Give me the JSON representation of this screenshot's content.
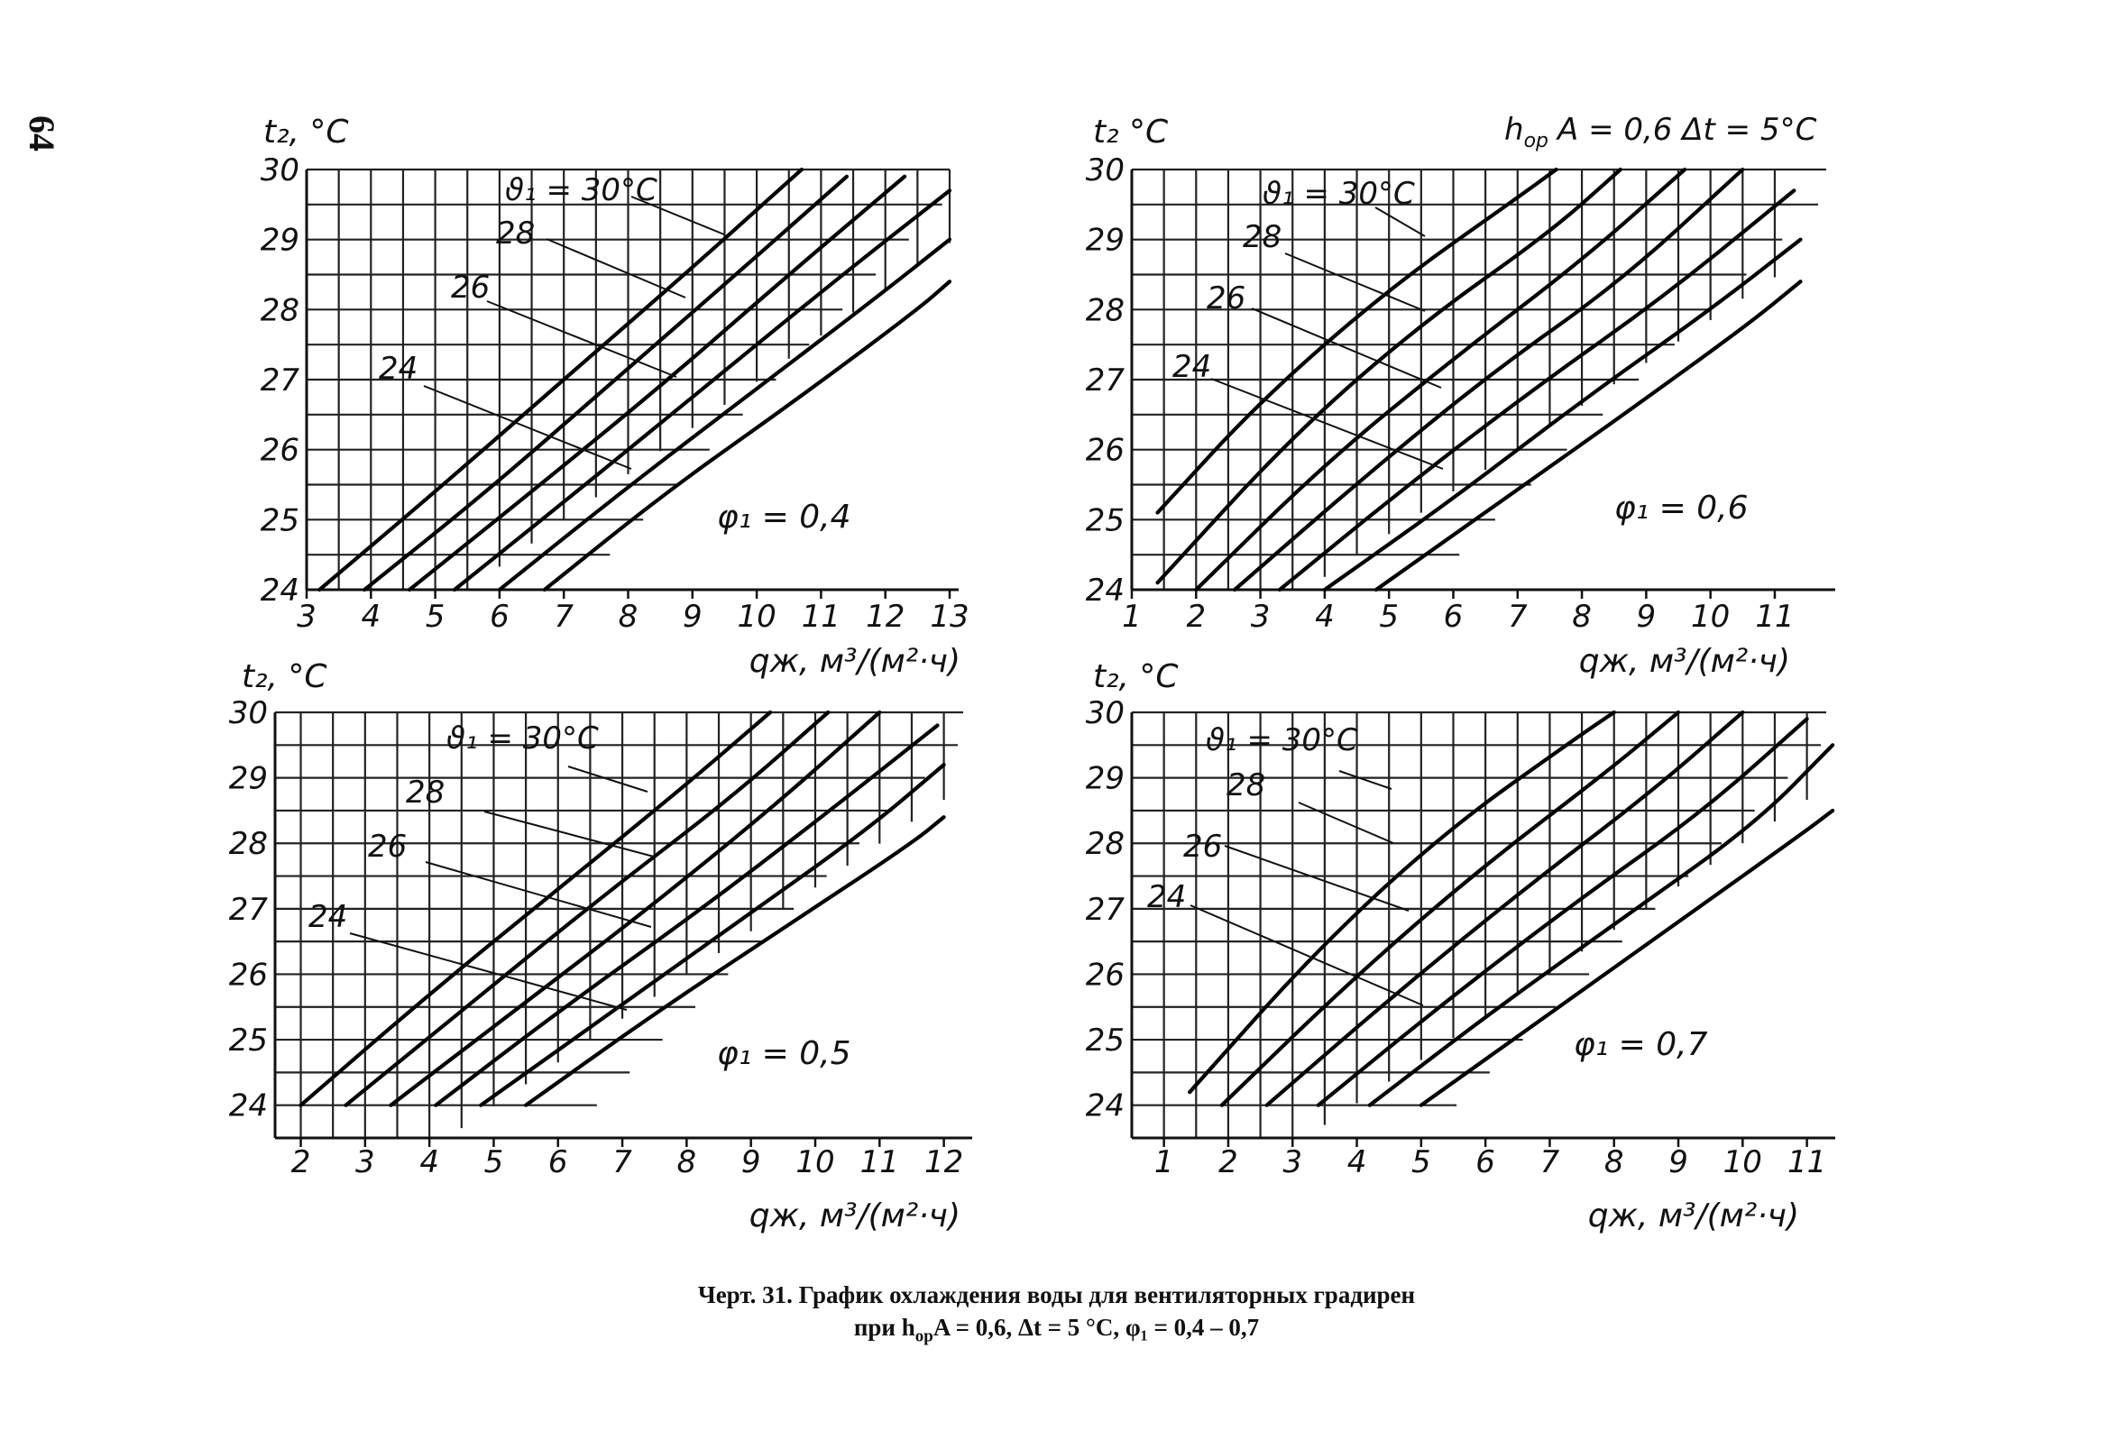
{
  "page_number": "64",
  "header": {
    "parameter_text": "h",
    "parameter_sub": "ор",
    "parameter_rest": "A = 0,6   Δt = 5°C"
  },
  "caption": {
    "line1": "Черт. 31. График охлаждения воды для вентиляторных градирен",
    "line2_prefix": "при h",
    "line2_sub": "ор",
    "line2_suffix": "A = 0,6, Δt = 5 °C, φ₁ = 0,4 – 0,7"
  },
  "chart_data": [
    {
      "type": "line",
      "ylabel": "t₂, °C",
      "xlabel": "qж, м³/(м²·ч)",
      "phi_label": "φ₁ = 0,4",
      "xlim": [
        3,
        13
      ],
      "ylim": [
        24,
        30
      ],
      "xticks": [
        "3",
        "4",
        "5",
        "6",
        "7",
        "8",
        "9",
        "10",
        "11",
        "12",
        "13"
      ],
      "yticks": [
        "24",
        "25",
        "26",
        "27",
        "28",
        "29",
        "30"
      ],
      "curve_labels": [
        "ϑ₁ = 30°C",
        "28",
        "26",
        "24"
      ],
      "series": [
        {
          "points": [
            [
              3.2,
              24.0
            ],
            [
              5.0,
              25.4
            ],
            [
              7.0,
              27.0
            ],
            [
              9.0,
              28.6
            ],
            [
              10.7,
              30.0
            ]
          ]
        },
        {
          "points": [
            [
              3.9,
              24.0
            ],
            [
              5.8,
              25.4
            ],
            [
              7.8,
              27.0
            ],
            [
              9.8,
              28.6
            ],
            [
              11.4,
              29.9
            ]
          ]
        },
        {
          "points": [
            [
              4.6,
              24.0
            ],
            [
              6.5,
              25.4
            ],
            [
              8.5,
              26.9
            ],
            [
              10.5,
              28.5
            ],
            [
              12.3,
              29.9
            ]
          ]
        },
        {
          "points": [
            [
              5.3,
              24.0
            ],
            [
              7.2,
              25.4
            ],
            [
              9.2,
              26.9
            ],
            [
              11.2,
              28.4
            ],
            [
              13.0,
              29.7
            ]
          ]
        },
        {
          "points": [
            [
              6.0,
              24.0
            ],
            [
              7.9,
              25.4
            ],
            [
              9.9,
              26.8
            ],
            [
              11.9,
              28.2
            ],
            [
              13.0,
              29.0
            ]
          ]
        },
        {
          "points": [
            [
              6.7,
              24.0
            ],
            [
              8.6,
              25.4
            ],
            [
              10.6,
              26.7
            ],
            [
              12.5,
              28.0
            ],
            [
              13.0,
              28.4
            ]
          ]
        }
      ]
    },
    {
      "type": "line",
      "ylabel": "t₂ °C",
      "xlabel": "qж, м³/(м²·ч)",
      "phi_label": "φ₁ = 0,6",
      "xlim": [
        1,
        11.8
      ],
      "ylim": [
        24,
        30
      ],
      "xticks": [
        "1",
        "2",
        "3",
        "4",
        "5",
        "6",
        "7",
        "8",
        "9",
        "10",
        "11"
      ],
      "yticks": [
        "24",
        "25",
        "26",
        "27",
        "28",
        "29",
        "30"
      ],
      "curve_labels": [
        "ϑ₁ = 30°C",
        "28",
        "26",
        "24"
      ],
      "series": [
        {
          "points": [
            [
              1.4,
              25.1
            ],
            [
              3.0,
              26.7
            ],
            [
              5.0,
              28.3
            ],
            [
              7.0,
              29.6
            ],
            [
              7.6,
              30.0
            ]
          ]
        },
        {
          "points": [
            [
              1.4,
              24.1
            ],
            [
              3.5,
              26.2
            ],
            [
              5.5,
              27.8
            ],
            [
              7.5,
              29.1
            ],
            [
              8.6,
              30.0
            ]
          ]
        },
        {
          "points": [
            [
              2.0,
              24.0
            ],
            [
              4.0,
              25.8
            ],
            [
              6.0,
              27.3
            ],
            [
              8.0,
              28.7
            ],
            [
              9.6,
              30.0
            ]
          ]
        },
        {
          "points": [
            [
              2.6,
              24.0
            ],
            [
              4.6,
              25.6
            ],
            [
              6.6,
              27.1
            ],
            [
              8.6,
              28.4
            ],
            [
              10.5,
              30.0
            ]
          ]
        },
        {
          "points": [
            [
              3.3,
              24.0
            ],
            [
              5.3,
              25.5
            ],
            [
              7.3,
              26.9
            ],
            [
              9.3,
              28.2
            ],
            [
              11.3,
              29.7
            ]
          ]
        },
        {
          "points": [
            [
              4.0,
              24.0
            ],
            [
              6.0,
              25.3
            ],
            [
              8.0,
              26.7
            ],
            [
              10.0,
              28.0
            ],
            [
              11.4,
              29.0
            ]
          ]
        },
        {
          "points": [
            [
              4.8,
              24.0
            ],
            [
              6.8,
              25.3
            ],
            [
              8.8,
              26.6
            ],
            [
              10.6,
              27.8
            ],
            [
              11.4,
              28.4
            ]
          ]
        }
      ]
    },
    {
      "type": "line",
      "ylabel": "t₂, °C",
      "xlabel": "qж, м³/(м²·ч)",
      "phi_label": "φ₁ = 0,5",
      "xlim": [
        1.6,
        12.3
      ],
      "ylim": [
        23.5,
        30
      ],
      "xticks": [
        "2",
        "3",
        "4",
        "5",
        "6",
        "7",
        "8",
        "9",
        "10",
        "11",
        "12"
      ],
      "yticks": [
        "24",
        "25",
        "26",
        "27",
        "28",
        "29",
        "30"
      ],
      "curve_labels": [
        "ϑ₁ = 30°C",
        "28",
        "26",
        "24"
      ],
      "series": [
        {
          "points": [
            [
              2.0,
              24.0
            ],
            [
              4.0,
              25.7
            ],
            [
              6.0,
              27.3
            ],
            [
              8.0,
              28.9
            ],
            [
              9.3,
              30.0
            ]
          ]
        },
        {
          "points": [
            [
              2.7,
              24.0
            ],
            [
              4.7,
              25.6
            ],
            [
              6.7,
              27.2
            ],
            [
              8.7,
              28.7
            ],
            [
              10.2,
              30.0
            ]
          ]
        },
        {
          "points": [
            [
              3.4,
              24.0
            ],
            [
              5.4,
              25.5
            ],
            [
              7.4,
              27.0
            ],
            [
              9.4,
              28.6
            ],
            [
              11.0,
              30.0
            ]
          ]
        },
        {
          "points": [
            [
              4.1,
              24.0
            ],
            [
              6.1,
              25.5
            ],
            [
              8.1,
              26.9
            ],
            [
              10.1,
              28.4
            ],
            [
              11.9,
              29.8
            ]
          ]
        },
        {
          "points": [
            [
              4.8,
              24.0
            ],
            [
              6.8,
              25.4
            ],
            [
              8.8,
              26.8
            ],
            [
              10.8,
              28.2
            ],
            [
              12.0,
              29.2
            ]
          ]
        },
        {
          "points": [
            [
              5.5,
              24.0
            ],
            [
              7.5,
              25.4
            ],
            [
              9.5,
              26.7
            ],
            [
              11.5,
              28.0
            ],
            [
              12.0,
              28.4
            ]
          ]
        }
      ]
    },
    {
      "type": "line",
      "ylabel": "t₂, °C",
      "xlabel": "qж, м³/(м²·ч)",
      "phi_label": "φ₁ = 0,7",
      "xlim": [
        0.5,
        11.3
      ],
      "ylim": [
        23.5,
        30
      ],
      "xticks": [
        "1",
        "2",
        "3",
        "4",
        "5",
        "6",
        "7",
        "8",
        "9",
        "10",
        "11"
      ],
      "yticks": [
        "24",
        "25",
        "26",
        "27",
        "28",
        "29",
        "30"
      ],
      "curve_labels": [
        "ϑ₁ = 30°C",
        "28",
        "26",
        "24"
      ],
      "series": [
        {
          "points": [
            [
              1.4,
              24.2
            ],
            [
              3.4,
              26.4
            ],
            [
              5.4,
              28.2
            ],
            [
              7.4,
              29.6
            ],
            [
              8.0,
              30.0
            ]
          ]
        },
        {
          "points": [
            [
              1.9,
              24.0
            ],
            [
              3.9,
              25.9
            ],
            [
              5.9,
              27.6
            ],
            [
              7.9,
              29.1
            ],
            [
              9.0,
              30.0
            ]
          ]
        },
        {
          "points": [
            [
              2.6,
              24.0
            ],
            [
              4.6,
              25.7
            ],
            [
              6.6,
              27.3
            ],
            [
              8.6,
              28.8
            ],
            [
              10.0,
              30.0
            ]
          ]
        },
        {
          "points": [
            [
              3.4,
              24.0
            ],
            [
              5.4,
              25.6
            ],
            [
              7.4,
              27.1
            ],
            [
              9.4,
              28.5
            ],
            [
              11.0,
              29.9
            ]
          ]
        },
        {
          "points": [
            [
              4.2,
              24.0
            ],
            [
              6.2,
              25.5
            ],
            [
              8.2,
              26.9
            ],
            [
              10.2,
              28.3
            ],
            [
              11.4,
              29.5
            ]
          ]
        },
        {
          "points": [
            [
              5.0,
              24.0
            ],
            [
              7.0,
              25.4
            ],
            [
              9.0,
              26.8
            ],
            [
              11.0,
              28.2
            ],
            [
              11.4,
              28.5
            ]
          ]
        }
      ]
    }
  ]
}
